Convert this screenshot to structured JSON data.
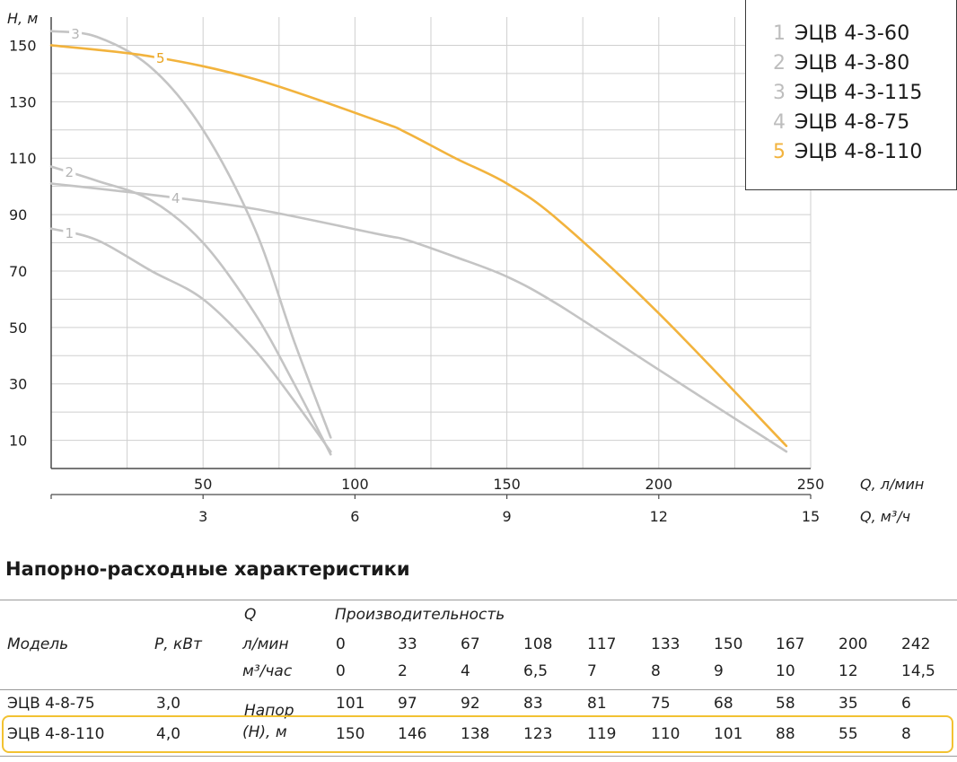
{
  "chart_data": {
    "type": "line",
    "title": "",
    "ylabel": "H, м",
    "xlabel": "Q, л/мин",
    "xlabel2": "Q, м³/ч",
    "xlim": [
      0,
      250
    ],
    "ylim": [
      0,
      160
    ],
    "y_ticks": [
      "10",
      "30",
      "50",
      "70",
      "90",
      "110",
      "130",
      "150"
    ],
    "x_ticks": [
      "50",
      "100",
      "150",
      "200",
      "250"
    ],
    "x2_ticks": [
      "3",
      "6",
      "9",
      "12",
      "15"
    ],
    "grid": true,
    "series": [
      {
        "name": "1",
        "color": "#c4c4c4",
        "x": [
          0,
          15,
          33,
          50,
          67,
          80,
          92
        ],
        "y": [
          85,
          81,
          70,
          60,
          42,
          24,
          6
        ]
      },
      {
        "name": "2",
        "color": "#c4c4c4",
        "x": [
          0,
          15,
          33,
          50,
          67,
          80,
          92
        ],
        "y": [
          107,
          102,
          95,
          80,
          55,
          30,
          5
        ]
      },
      {
        "name": "3",
        "color": "#c4c4c4",
        "x": [
          0,
          15,
          33,
          50,
          67,
          80,
          92
        ],
        "y": [
          155,
          153,
          142,
          120,
          85,
          45,
          11
        ]
      },
      {
        "name": "4",
        "color": "#c4c4c4",
        "x": [
          0,
          33,
          67,
          108,
          117,
          133,
          150,
          167,
          200,
          242
        ],
        "y": [
          101,
          97,
          92,
          83,
          81,
          75,
          68,
          58,
          35,
          6
        ]
      },
      {
        "name": "5",
        "color": "#f2b33d",
        "x": [
          0,
          33,
          67,
          108,
          117,
          133,
          150,
          167,
          200,
          242
        ],
        "y": [
          150,
          146,
          138,
          123,
          119,
          110,
          101,
          88,
          55,
          8
        ]
      }
    ],
    "legend": {
      "placement": "top-right",
      "entries": [
        {
          "num": "1",
          "label": "ЭЦВ 4-3-60",
          "color": "#bdbdbd"
        },
        {
          "num": "2",
          "label": "ЭЦВ 4-3-80",
          "color": "#bdbdbd"
        },
        {
          "num": "3",
          "label": "ЭЦВ 4-3-115",
          "color": "#bdbdbd"
        },
        {
          "num": "4",
          "label": "ЭЦВ 4-8-75",
          "color": "#bdbdbd"
        },
        {
          "num": "5",
          "label": "ЭЦВ 4-8-110",
          "color": "#f2b33d"
        }
      ]
    }
  },
  "table": {
    "title": "Напорно-расходные характеристики",
    "h_model": "Модель",
    "h_power": "Р, кВт",
    "h_q": "Q",
    "h_perf": "Производительность",
    "h_lmin": "л/мин",
    "h_m3": "м³/час",
    "lmin": [
      "0",
      "33",
      "67",
      "108",
      "117",
      "133",
      "150",
      "167",
      "200",
      "242"
    ],
    "m3": [
      "0",
      "2",
      "4",
      "6,5",
      "7",
      "8",
      "9",
      "10",
      "12",
      "14,5"
    ],
    "head_label_1": "Напор",
    "head_label_2": "(Н), м",
    "highlight_color": "#f2c232",
    "rows": [
      {
        "model": "ЭЦВ 4-8-75",
        "power": "3,0",
        "values": [
          "101",
          "97",
          "92",
          "83",
          "81",
          "75",
          "68",
          "58",
          "35",
          "6"
        ]
      },
      {
        "model": "ЭЦВ 4-8-110",
        "power": "4,0",
        "values": [
          "150",
          "146",
          "138",
          "123",
          "119",
          "110",
          "101",
          "88",
          "55",
          "8"
        ]
      }
    ]
  }
}
